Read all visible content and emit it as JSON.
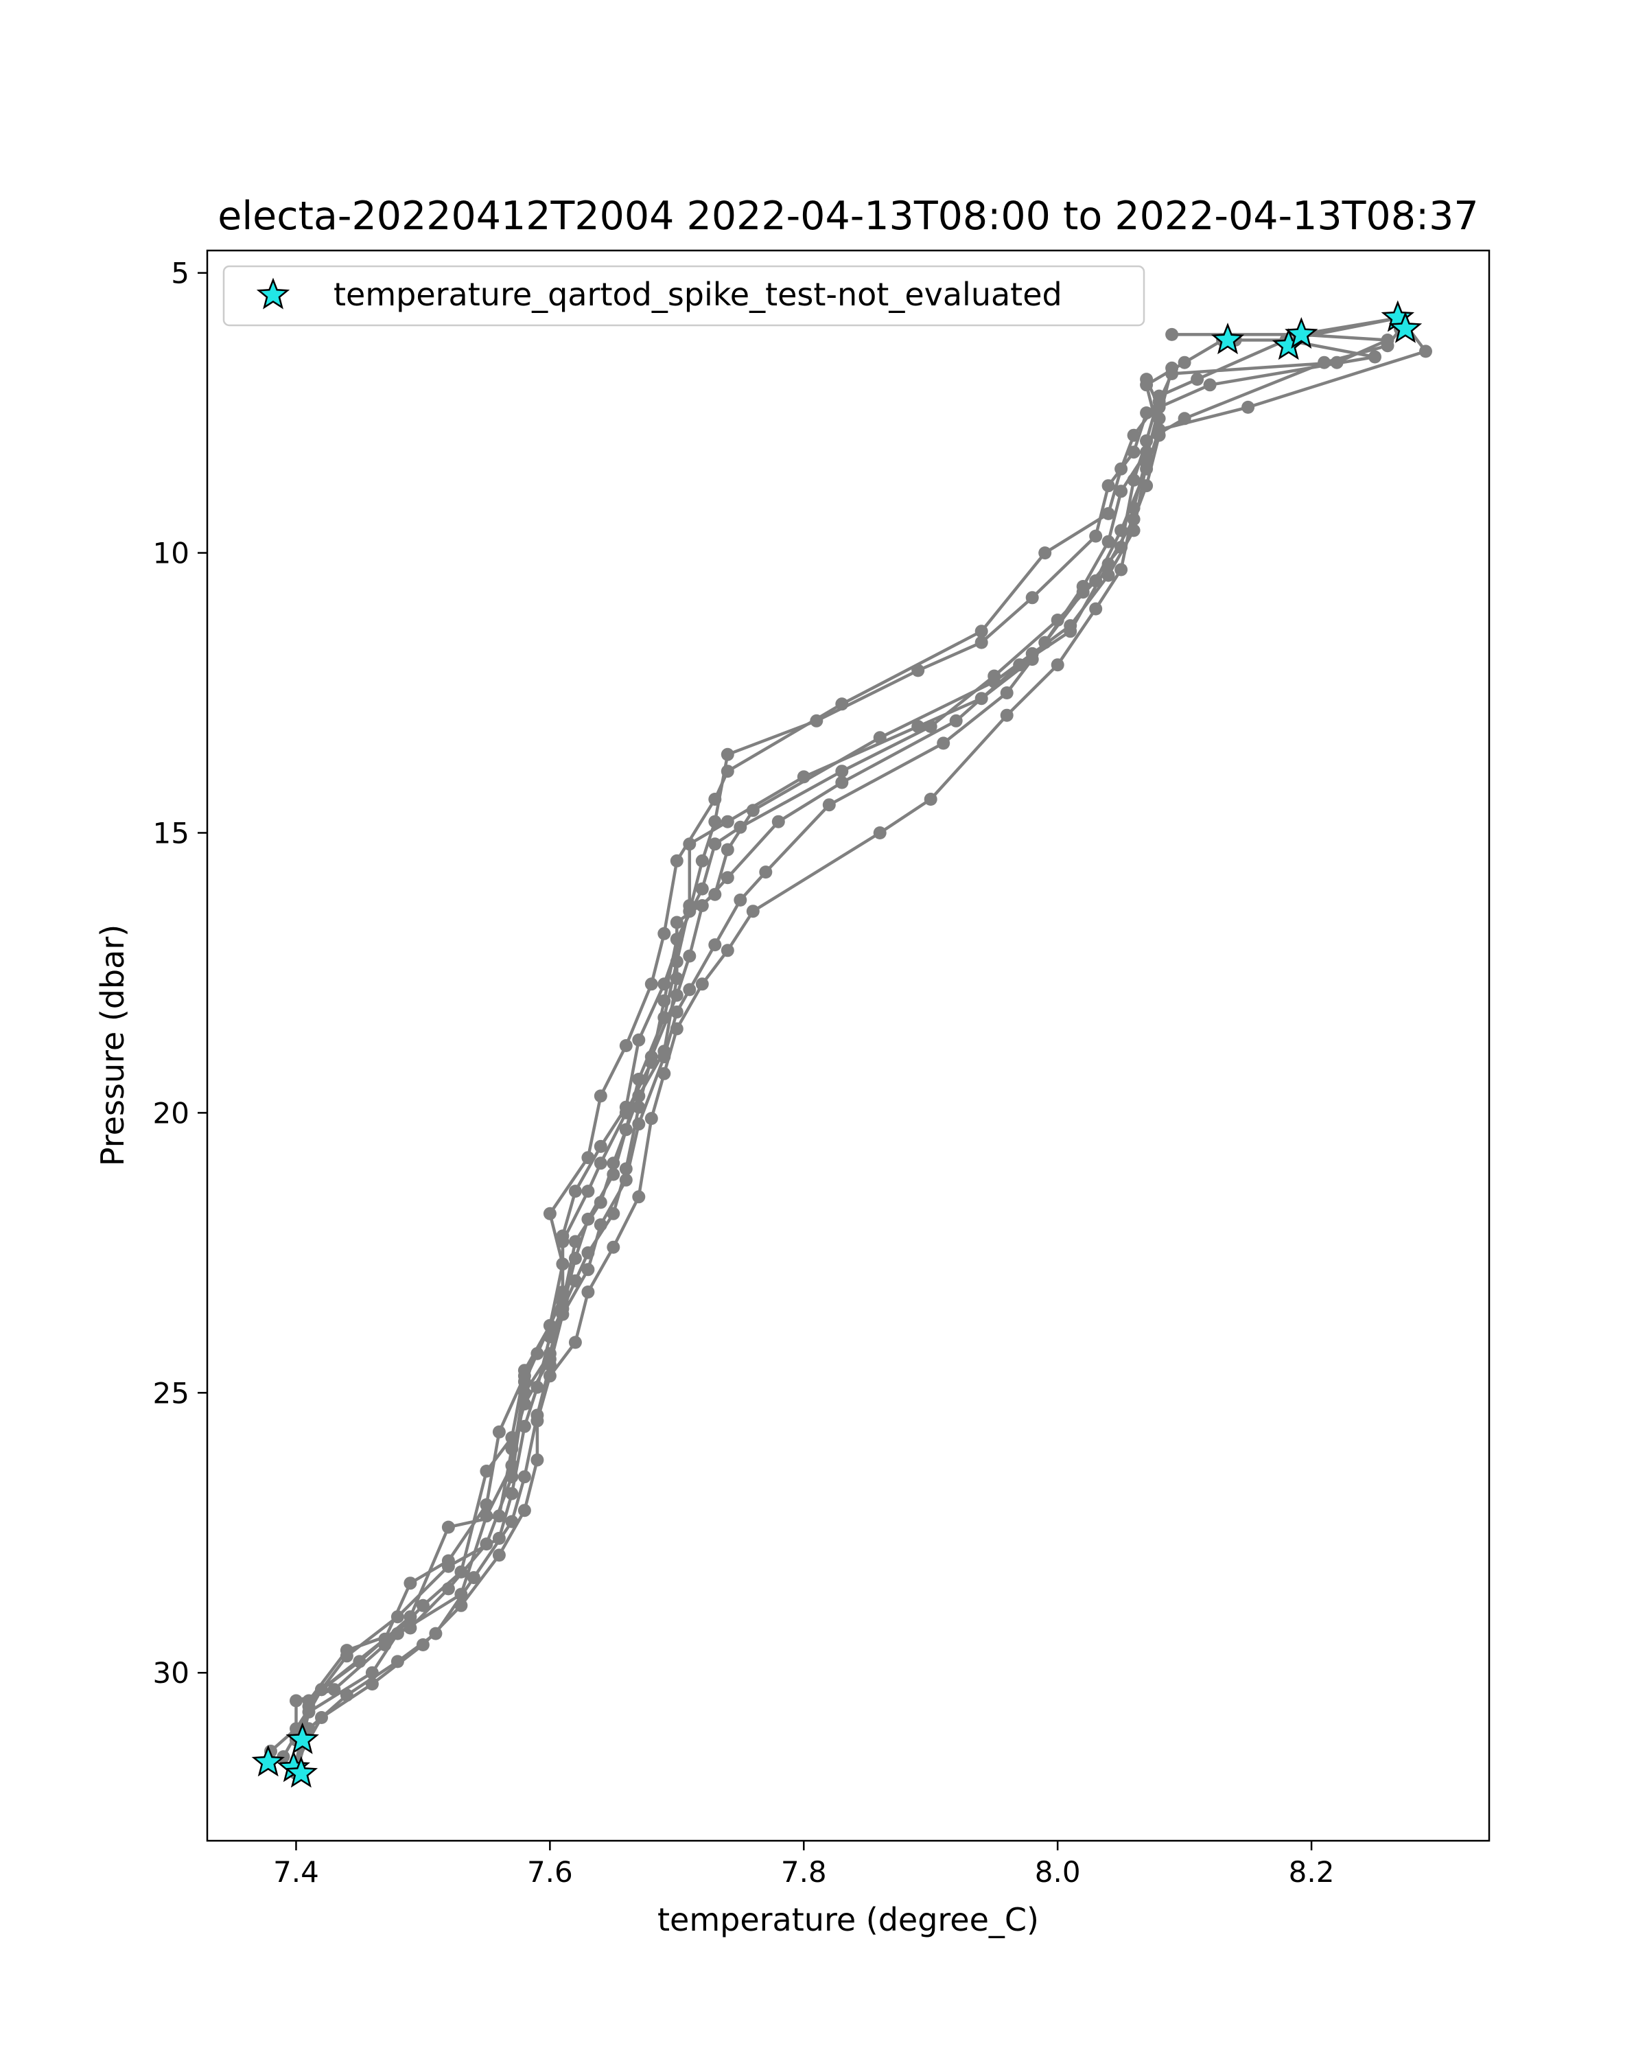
{
  "chart_data": {
    "type": "line",
    "title": "electa-20220412T2004 2022-04-13T08:00 to 2022-04-13T08:37",
    "xlabel": "temperature (degree_C)",
    "ylabel": "Pressure (dbar)",
    "xlim": [
      7.33,
      8.34
    ],
    "ylim": [
      33.0,
      4.6
    ],
    "y_inverted": true,
    "x_ticks": [
      7.4,
      7.6,
      7.8,
      8.0,
      8.2
    ],
    "x_tick_labels": [
      "7.4",
      "7.6",
      "7.8",
      "8.0",
      "8.2"
    ],
    "y_ticks": [
      5,
      10,
      15,
      20,
      25,
      30
    ],
    "y_tick_labels": [
      "5",
      "10",
      "15",
      "20",
      "25",
      "30"
    ],
    "grid": false,
    "legend": {
      "placement": "upper-left",
      "entries": [
        {
          "label": "temperature_qartod_spike_test-not_evaluated",
          "marker": "star",
          "color": "#00e5e5"
        }
      ]
    },
    "line_color": "#808080",
    "star_color": "#22e6e6",
    "series": [
      {
        "values": [
          [
            8.09,
            6.1
          ],
          [
            8.19,
            6.1
          ],
          [
            8.26,
            6.2
          ],
          [
            8.22,
            6.6
          ],
          [
            8.09,
            6.8
          ],
          [
            8.08,
            7.3
          ],
          [
            8.06,
            7.9
          ],
          [
            8.05,
            8.5
          ],
          [
            8.04,
            9.3
          ],
          [
            7.99,
            10.0
          ],
          [
            7.94,
            11.4
          ],
          [
            7.83,
            12.7
          ],
          [
            7.74,
            13.9
          ],
          [
            7.73,
            14.4
          ],
          [
            7.7,
            15.5
          ],
          [
            7.69,
            16.8
          ],
          [
            7.68,
            17.7
          ],
          [
            7.66,
            18.8
          ],
          [
            7.64,
            19.7
          ],
          [
            7.63,
            20.8
          ],
          [
            7.6,
            21.8
          ],
          [
            7.61,
            22.7
          ],
          [
            7.6,
            23.8
          ],
          [
            7.58,
            24.7
          ],
          [
            7.56,
            25.7
          ],
          [
            7.55,
            27.0
          ],
          [
            7.52,
            28.0
          ],
          [
            7.49,
            28.4
          ],
          [
            7.47,
            29.4
          ],
          [
            7.42,
            30.3
          ],
          [
            7.4,
            31.0
          ],
          [
            7.38,
            31.4
          ]
        ]
      },
      {
        "values": [
          [
            8.14,
            6.2
          ],
          [
            8.18,
            6.2
          ],
          [
            8.25,
            6.5
          ],
          [
            8.12,
            7.0
          ],
          [
            8.07,
            7.5
          ],
          [
            8.06,
            8.2
          ],
          [
            8.04,
            8.8
          ],
          [
            8.03,
            9.7
          ],
          [
            7.98,
            10.8
          ],
          [
            7.94,
            11.6
          ],
          [
            7.89,
            12.1
          ],
          [
            7.81,
            13.0
          ],
          [
            7.74,
            13.6
          ],
          [
            7.73,
            14.8
          ],
          [
            7.72,
            15.5
          ],
          [
            7.71,
            16.4
          ],
          [
            7.69,
            17.7
          ],
          [
            7.67,
            18.7
          ],
          [
            7.66,
            19.9
          ],
          [
            7.64,
            20.6
          ],
          [
            7.62,
            21.4
          ],
          [
            7.61,
            22.2
          ],
          [
            7.61,
            23.2
          ],
          [
            7.6,
            23.8
          ],
          [
            7.58,
            24.6
          ],
          [
            7.57,
            25.8
          ],
          [
            7.55,
            26.4
          ],
          [
            7.53,
            28.2
          ],
          [
            7.5,
            28.8
          ],
          [
            7.47,
            29.5
          ],
          [
            7.43,
            30.3
          ],
          [
            7.4,
            30.5
          ],
          [
            7.4,
            31.2
          ]
        ]
      },
      {
        "values": [
          [
            8.19,
            6.1
          ],
          [
            8.27,
            5.8
          ],
          [
            8.29,
            6.4
          ],
          [
            8.15,
            7.4
          ],
          [
            8.08,
            7.8
          ],
          [
            8.07,
            8.5
          ],
          [
            8.05,
            9.6
          ],
          [
            8.03,
            10.5
          ],
          [
            8.0,
            11.2
          ],
          [
            7.95,
            12.2
          ],
          [
            7.9,
            13.1
          ],
          [
            7.83,
            13.9
          ],
          [
            7.75,
            14.9
          ],
          [
            7.73,
            15.2
          ],
          [
            7.72,
            16.0
          ],
          [
            7.7,
            16.9
          ],
          [
            7.69,
            18.0
          ],
          [
            7.68,
            19.1
          ],
          [
            7.66,
            20.0
          ],
          [
            7.64,
            20.9
          ],
          [
            7.63,
            21.4
          ],
          [
            7.61,
            22.3
          ],
          [
            7.61,
            23.3
          ],
          [
            7.59,
            24.3
          ],
          [
            7.58,
            24.8
          ],
          [
            7.57,
            26.3
          ],
          [
            7.55,
            27.2
          ],
          [
            7.53,
            28.6
          ],
          [
            7.48,
            29.3
          ],
          [
            7.46,
            30.0
          ],
          [
            7.41,
            30.7
          ],
          [
            7.4,
            31.7
          ]
        ]
      },
      {
        "values": [
          [
            8.27,
            6.0
          ],
          [
            8.26,
            6.3
          ],
          [
            8.21,
            6.6
          ],
          [
            8.1,
            7.6
          ],
          [
            8.07,
            8.0
          ],
          [
            8.06,
            8.7
          ],
          [
            8.05,
            9.9
          ],
          [
            8.02,
            10.7
          ],
          [
            7.98,
            11.9
          ],
          [
            7.94,
            12.6
          ],
          [
            7.89,
            13.1
          ],
          [
            7.8,
            14.0
          ],
          [
            7.74,
            14.8
          ],
          [
            7.71,
            15.2
          ],
          [
            7.71,
            16.3
          ],
          [
            7.7,
            17.3
          ],
          [
            7.69,
            18.3
          ],
          [
            7.67,
            19.4
          ],
          [
            7.66,
            20.3
          ],
          [
            7.65,
            21.1
          ],
          [
            7.63,
            21.9
          ],
          [
            7.62,
            22.6
          ],
          [
            7.61,
            23.5
          ],
          [
            7.6,
            24.4
          ],
          [
            7.58,
            25.2
          ],
          [
            7.57,
            26.0
          ],
          [
            7.56,
            27.2
          ],
          [
            7.52,
            27.4
          ],
          [
            7.49,
            29.0
          ],
          [
            7.45,
            29.8
          ],
          [
            7.42,
            30.3
          ],
          [
            7.39,
            31.5
          ]
        ]
      },
      {
        "values": [
          [
            8.27,
            5.8
          ],
          [
            8.18,
            6.2
          ],
          [
            8.11,
            6.9
          ],
          [
            8.08,
            7.2
          ],
          [
            8.07,
            8.0
          ],
          [
            8.07,
            8.4
          ],
          [
            8.06,
            9.6
          ],
          [
            8.04,
            10.4
          ],
          [
            8.01,
            11.3
          ],
          [
            7.98,
            11.8
          ],
          [
            7.95,
            12.3
          ],
          [
            7.86,
            13.3
          ],
          [
            7.76,
            14.6
          ],
          [
            7.74,
            15.3
          ],
          [
            7.73,
            16.1
          ],
          [
            7.7,
            16.6
          ],
          [
            7.7,
            17.6
          ],
          [
            7.69,
            18.9
          ],
          [
            7.67,
            19.7
          ],
          [
            7.65,
            20.9
          ],
          [
            7.64,
            21.6
          ],
          [
            7.62,
            22.3
          ],
          [
            7.61,
            23.4
          ],
          [
            7.6,
            24.3
          ],
          [
            7.58,
            25.0
          ],
          [
            7.57,
            26.5
          ],
          [
            7.55,
            27.7
          ],
          [
            7.52,
            28.5
          ],
          [
            7.49,
            29.2
          ],
          [
            7.44,
            29.6
          ],
          [
            7.41,
            30.5
          ],
          [
            7.4,
            31.6
          ]
        ]
      },
      {
        "values": [
          [
            8.13,
            6.2
          ],
          [
            8.1,
            6.6
          ],
          [
            8.07,
            7.0
          ],
          [
            8.08,
            7.9
          ],
          [
            8.07,
            8.8
          ],
          [
            8.06,
            9.4
          ],
          [
            8.04,
            10.2
          ],
          [
            8.01,
            11.4
          ],
          [
            7.97,
            12.0
          ],
          [
            7.92,
            13.0
          ],
          [
            7.83,
            14.1
          ],
          [
            7.78,
            14.8
          ],
          [
            7.74,
            15.8
          ],
          [
            7.72,
            16.3
          ],
          [
            7.71,
            17.2
          ],
          [
            7.7,
            17.9
          ],
          [
            7.68,
            19.0
          ],
          [
            7.67,
            19.9
          ],
          [
            7.66,
            21.0
          ],
          [
            7.65,
            21.8
          ],
          [
            7.63,
            22.5
          ],
          [
            7.62,
            23.0
          ],
          [
            7.6,
            24.0
          ],
          [
            7.59,
            24.9
          ],
          [
            7.58,
            25.6
          ],
          [
            7.57,
            26.8
          ],
          [
            7.56,
            27.6
          ],
          [
            7.52,
            28.1
          ],
          [
            7.48,
            29.0
          ],
          [
            7.44,
            29.7
          ],
          [
            7.41,
            30.6
          ],
          [
            7.4,
            31.2
          ]
        ]
      },
      {
        "values": [
          [
            8.09,
            6.7
          ],
          [
            8.08,
            7.6
          ],
          [
            8.07,
            8.2
          ],
          [
            8.05,
            8.9
          ],
          [
            8.04,
            9.8
          ],
          [
            8.02,
            10.6
          ],
          [
            7.99,
            11.6
          ],
          [
            7.96,
            12.5
          ],
          [
            7.91,
            13.4
          ],
          [
            7.82,
            14.5
          ],
          [
            7.77,
            15.7
          ],
          [
            7.75,
            16.2
          ],
          [
            7.73,
            17.0
          ],
          [
            7.71,
            17.8
          ],
          [
            7.7,
            18.2
          ],
          [
            7.69,
            19.0
          ],
          [
            7.67,
            20.2
          ],
          [
            7.66,
            21.2
          ],
          [
            7.64,
            22.0
          ],
          [
            7.63,
            22.8
          ],
          [
            7.61,
            23.6
          ],
          [
            7.6,
            24.5
          ],
          [
            7.59,
            25.4
          ],
          [
            7.58,
            26.5
          ],
          [
            7.57,
            27.3
          ],
          [
            7.54,
            28.3
          ],
          [
            7.51,
            29.3
          ],
          [
            7.48,
            29.8
          ],
          [
            7.44,
            30.4
          ],
          [
            7.41,
            31.0
          ],
          [
            7.4,
            31.8
          ]
        ]
      },
      {
        "values": [
          [
            8.07,
            6.9
          ],
          [
            8.08,
            7.4
          ],
          [
            8.07,
            8.3
          ],
          [
            8.06,
            9.2
          ],
          [
            8.05,
            10.3
          ],
          [
            8.03,
            11.0
          ],
          [
            8.0,
            12.0
          ],
          [
            7.96,
            12.9
          ],
          [
            7.9,
            14.4
          ],
          [
            7.86,
            15.0
          ],
          [
            7.76,
            16.4
          ],
          [
            7.74,
            17.1
          ],
          [
            7.72,
            17.7
          ],
          [
            7.7,
            18.5
          ],
          [
            7.69,
            19.3
          ],
          [
            7.68,
            20.1
          ],
          [
            7.67,
            21.5
          ],
          [
            7.65,
            22.4
          ],
          [
            7.63,
            23.2
          ],
          [
            7.62,
            24.1
          ],
          [
            7.6,
            24.7
          ],
          [
            7.59,
            25.5
          ],
          [
            7.59,
            26.2
          ],
          [
            7.58,
            27.1
          ],
          [
            7.56,
            27.9
          ],
          [
            7.53,
            28.8
          ],
          [
            7.5,
            29.5
          ],
          [
            7.46,
            30.2
          ],
          [
            7.42,
            30.8
          ],
          [
            7.4,
            31.6
          ]
        ]
      }
    ],
    "stars": [
      [
        8.134,
        6.2
      ],
      [
        8.182,
        6.3
      ],
      [
        8.192,
        6.1
      ],
      [
        8.268,
        5.8
      ],
      [
        8.274,
        6.0
      ],
      [
        7.378,
        31.6
      ],
      [
        7.405,
        31.2
      ],
      [
        7.398,
        31.7
      ],
      [
        7.404,
        31.8
      ]
    ]
  }
}
